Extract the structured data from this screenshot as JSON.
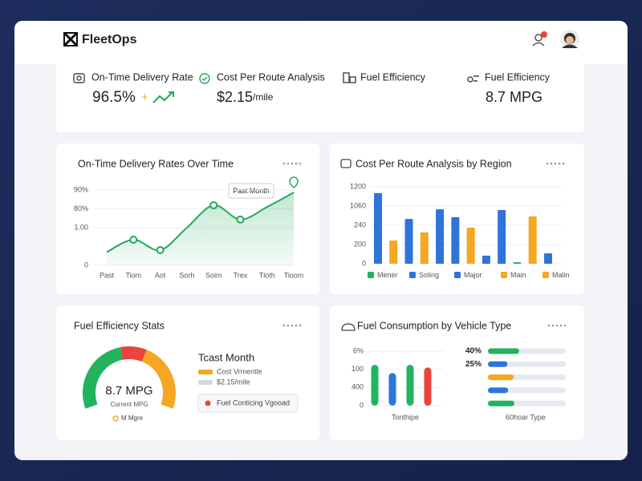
{
  "header": {
    "brand": "FleetOps"
  },
  "kpis": [
    {
      "label": "On-Time Delivery Rate",
      "value": "96.5%",
      "change": "+"
    },
    {
      "label": "Cost Per Route Analysis",
      "value": "$2.15",
      "unit": "/mile"
    },
    {
      "label": "Fuel Efficiency"
    },
    {
      "label": "Fuel Efficiency",
      "value": "8.7 MPG"
    }
  ],
  "delivery_chart": {
    "type": "line",
    "title": "On-Time Delivery Rates Over Time",
    "annotation": "Past Month",
    "categories": [
      "Past",
      "Tiom",
      "Aot",
      "Sorh",
      "Soim",
      "Trex",
      "Tloth",
      "Tioom"
    ],
    "values": [
      0.7,
      1.36,
      0.81,
      2,
      3.19,
      2.43,
      3.1,
      3.87
    ],
    "markers": [
      1,
      2,
      4,
      5
    ],
    "color": "#22a95a",
    "ylim": [
      0,
      4
    ],
    "yticks": [
      0,
      {
        "value": 2,
        "label": "1.00"
      },
      {
        "value": 3,
        "label": "80%"
      },
      {
        "value": 4,
        "label": "90%"
      }
    ]
  },
  "region_chart": {
    "type": "bar",
    "title": "Cost Per Route Analysis by Region",
    "values": [
      3.67,
      1.21,
      2.33,
      1.63,
      2.83,
      2.42,
      1.88,
      0.42,
      2.79,
      0.08,
      2.46,
      0.54
    ],
    "colors": [
      "#2f74d8",
      "#f5a623",
      "#2f74d8",
      "#f5a623",
      "#2f74d8",
      "#2f74d8",
      "#f5a623",
      "#2f74d8",
      "#2f74d8",
      "#22b35e",
      "#f5a623",
      "#2f74d8"
    ],
    "ylim": [
      0,
      4
    ],
    "yticks": [
      0,
      {
        "value": 1,
        "label": "200"
      },
      {
        "value": 2,
        "label": "240"
      },
      {
        "value": 3,
        "label": "1060"
      },
      {
        "value": 4,
        "label": "1200"
      }
    ],
    "legend": [
      {
        "name": "Mener",
        "color": "#22b35e"
      },
      {
        "name": "Soling",
        "color": "#2f74d8"
      },
      {
        "name": "Major",
        "color": "#2f74d8"
      },
      {
        "name": "Main",
        "color": "#f5a623"
      },
      {
        "name": "Malin",
        "color": "#f5a623"
      }
    ]
  },
  "gauge": {
    "type": "gauge",
    "title": "Fuel Efficiency Stats",
    "value": "8.7 MPG",
    "caption": "Current MPG",
    "more": "M Mgre",
    "segments": [
      {
        "color": "#22b35e",
        "value": 45
      },
      {
        "color": "#e8453c",
        "value": 15
      },
      {
        "color": "#f5a623",
        "value": 40
      }
    ],
    "side_title": "Tcast Month",
    "legend": [
      {
        "name": "Cost Vrmentle",
        "color": "#f5a623"
      },
      {
        "name": "$2.15/mile",
        "color": "#d3d7de"
      }
    ],
    "button": "Fuel Conticing Vgooad"
  },
  "vehicle_chart": {
    "type": "bar",
    "title": "Fuel Consumption by Vehicle Type",
    "values": [
      2.25,
      1.8,
      2.25,
      2.1
    ],
    "colors": [
      "#22b35e",
      "#2f74d8",
      "#22b35e",
      "#e8453c"
    ],
    "ylim": [
      0,
      3
    ],
    "yticks": [
      0,
      {
        "value": 1,
        "label": "400"
      },
      {
        "value": 2,
        "label": "100"
      },
      {
        "value": 3,
        "label": "6%"
      }
    ],
    "x_label": "Tonthipe",
    "progress": {
      "values": [
        40,
        25,
        33,
        26,
        34
      ],
      "value_labels": [
        "40%",
        "25%",
        null,
        null,
        null
      ],
      "colors": [
        "#22b35e",
        "#2f74d8",
        "#f5a623",
        "#2f74d8",
        "#22b35e"
      ],
      "xlim": [
        0,
        100
      ],
      "x_label": "60hoar Type"
    }
  }
}
